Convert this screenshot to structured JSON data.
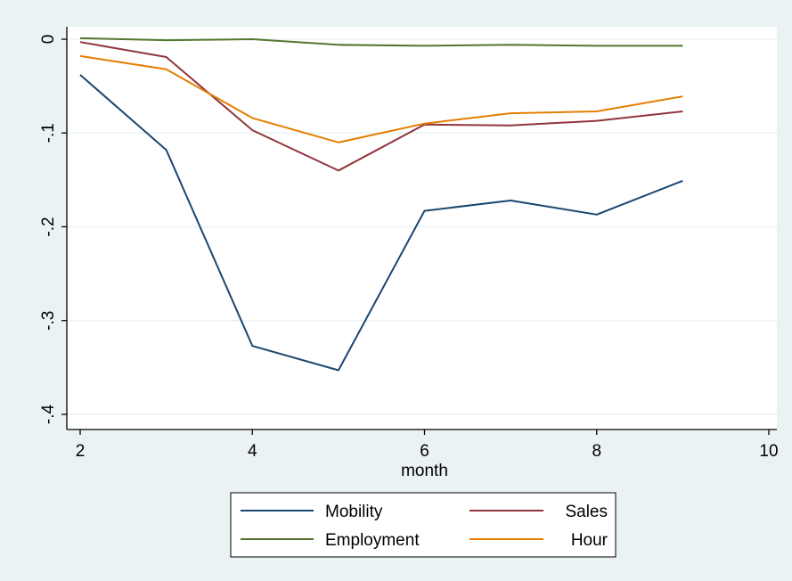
{
  "chart_data": {
    "type": "line",
    "title": "",
    "xlabel": "month",
    "ylabel": "",
    "x": [
      2,
      3,
      4,
      5,
      6,
      7,
      8,
      9
    ],
    "xlim": [
      2,
      10
    ],
    "ylim": [
      -0.4,
      0
    ],
    "xticks": [
      2,
      4,
      6,
      8,
      10
    ],
    "xtick_labels": [
      "2",
      "4",
      "6",
      "8",
      "10"
    ],
    "yticks": [
      0,
      -0.1,
      -0.2,
      -0.3,
      -0.4
    ],
    "ytick_labels": [
      "0",
      "-.1",
      "-.2",
      "-.3",
      "-.4"
    ],
    "grid": true,
    "legend_position": "bottom",
    "series": [
      {
        "name": "Mobility",
        "color": "#1a476f",
        "values": [
          -0.038,
          -0.118,
          -0.327,
          -0.353,
          -0.183,
          -0.172,
          -0.187,
          -0.151
        ]
      },
      {
        "name": "Sales",
        "color": "#90353b",
        "values": [
          -0.003,
          -0.019,
          -0.097,
          -0.14,
          -0.091,
          -0.092,
          -0.087,
          -0.077
        ]
      },
      {
        "name": "Employment",
        "color": "#55752f",
        "values": [
          0.001,
          -0.001,
          0.0,
          -0.006,
          -0.007,
          -0.006,
          -0.007,
          -0.007
        ]
      },
      {
        "name": "Hour",
        "color": "#e37e00",
        "values": [
          -0.018,
          -0.032,
          -0.084,
          -0.11,
          -0.09,
          -0.079,
          -0.077,
          -0.061
        ]
      }
    ],
    "colors": {
      "background": "#eaf2f3",
      "plot_area": "#ffffff",
      "grid": "#eaf2f3",
      "axis": "#000000"
    }
  }
}
